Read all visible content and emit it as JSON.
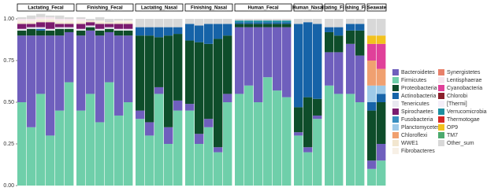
{
  "chart_data": {
    "type": "stacked-bar",
    "ylim": [
      0,
      1
    ],
    "yticks": [
      {
        "value": 0,
        "label": "0.00"
      },
      {
        "value": 0.25,
        "label": "0.25"
      },
      {
        "value": 0.5,
        "label": "0.50"
      },
      {
        "value": 0.75,
        "label": "0.75"
      },
      {
        "value": 1,
        "label": "1.00"
      }
    ],
    "series": [
      {
        "name": "Bacteroidetes",
        "color": "#6f5fbd"
      },
      {
        "name": "Firmicutes",
        "color": "#6fcfaa"
      },
      {
        "name": "Proteobacteria",
        "color": "#0e4d2a"
      },
      {
        "name": "Actinobacteria",
        "color": "#1663a8"
      },
      {
        "name": "Tenericutes",
        "color": "#e8e8f0"
      },
      {
        "name": "Spirochaetes",
        "color": "#7b1b6e"
      },
      {
        "name": "Fusobacteria",
        "color": "#3a8fc0"
      },
      {
        "name": "Planctomycetes",
        "color": "#9ecae8"
      },
      {
        "name": "Chloroflexi",
        "color": "#f0a070"
      },
      {
        "name": "WWE1",
        "color": "#f2e6cf"
      },
      {
        "name": "Fibrobacteres",
        "color": "#f7f0e6"
      },
      {
        "name": "Synergistetes",
        "color": "#e8806a"
      },
      {
        "name": "Lentisphaerae",
        "color": "#f6e6ee"
      },
      {
        "name": "Cyanobacteria",
        "color": "#e0409a"
      },
      {
        "name": "Chlorobi",
        "color": "#8a1f2a"
      },
      {
        "name": "[Thermi]",
        "color": "#f4eef8"
      },
      {
        "name": "Verrucomicrobia",
        "color": "#1e8fa0"
      },
      {
        "name": "Thermotogae",
        "color": "#d42828"
      },
      {
        "name": "OP9",
        "color": "#f2c21e"
      },
      {
        "name": "TM7",
        "color": "#4caa6e"
      },
      {
        "name": "Other_sum",
        "color": "#d8d8d8"
      }
    ],
    "facets": [
      {
        "label": "Lactating_Fecal",
        "values": [
          [
            0.4,
            0.55,
            0.35,
            0.6,
            0.45,
            0.3
          ],
          [
            0.5,
            0.35,
            0.55,
            0.3,
            0.45,
            0.62
          ],
          [
            0.03,
            0.04,
            0.03,
            0.03,
            0.04,
            0.02
          ],
          [
            0,
            0,
            0.01,
            0,
            0,
            0
          ],
          [
            0.01,
            0.01,
            0.01,
            0.01,
            0.01,
            0.01
          ],
          [
            0.03,
            0.02,
            0.03,
            0.04,
            0.02,
            0.02
          ],
          [
            0,
            0,
            0,
            0,
            0,
            0
          ],
          [
            0,
            0,
            0,
            0,
            0,
            0
          ],
          [
            0,
            0,
            0,
            0,
            0,
            0
          ],
          [
            0.01,
            0.01,
            0.01,
            0.01,
            0.01,
            0.01
          ],
          [
            0.01,
            0.01,
            0.01,
            0.01,
            0.01,
            0.01
          ],
          [
            0,
            0,
            0,
            0,
            0,
            0
          ],
          [
            0.01,
            0.01,
            0.01,
            0.01,
            0.01,
            0.01
          ],
          [
            0,
            0,
            0,
            0,
            0,
            0
          ],
          [
            0,
            0,
            0,
            0,
            0,
            0
          ],
          [
            0,
            0,
            0,
            0,
            0,
            0
          ],
          [
            0,
            0,
            0,
            0,
            0,
            0
          ],
          [
            0,
            0,
            0,
            0,
            0,
            0
          ],
          [
            0,
            0,
            0,
            0,
            0,
            0
          ],
          [
            0,
            0,
            0,
            0,
            0,
            0
          ],
          [
            0.01,
            0.02,
            0.02,
            0.01,
            0.02,
            0.01
          ]
        ]
      },
      {
        "label": "Finishing_Fecal",
        "values": [
          [
            0.45,
            0.38,
            0.52,
            0.3,
            0.48,
            0.4
          ],
          [
            0.45,
            0.55,
            0.38,
            0.62,
            0.42,
            0.5
          ],
          [
            0.03,
            0.02,
            0.03,
            0.02,
            0.03,
            0.03
          ],
          [
            0,
            0,
            0,
            0,
            0,
            0
          ],
          [
            0.01,
            0.01,
            0.01,
            0.01,
            0.01,
            0.01
          ],
          [
            0.03,
            0.02,
            0.03,
            0.02,
            0.03,
            0.03
          ],
          [
            0,
            0,
            0,
            0,
            0,
            0
          ],
          [
            0,
            0,
            0,
            0,
            0,
            0
          ],
          [
            0,
            0,
            0,
            0,
            0,
            0
          ],
          [
            0.01,
            0.01,
            0.01,
            0.01,
            0.01,
            0.01
          ],
          [
            0.01,
            0,
            0.01,
            0,
            0.01,
            0.01
          ],
          [
            0,
            0,
            0,
            0,
            0,
            0
          ],
          [
            0.01,
            0,
            0,
            0,
            0,
            0
          ],
          [
            0,
            0,
            0,
            0,
            0,
            0
          ],
          [
            0,
            0,
            0,
            0,
            0,
            0
          ],
          [
            0,
            0,
            0,
            0,
            0,
            0
          ],
          [
            0,
            0,
            0,
            0,
            0,
            0
          ],
          [
            0,
            0,
            0,
            0,
            0,
            0
          ],
          [
            0,
            0,
            0,
            0,
            0,
            0
          ],
          [
            0,
            0,
            0,
            0,
            0,
            0
          ],
          [
            0.01,
            0.01,
            0.02,
            0.02,
            0.01,
            0.01
          ]
        ]
      },
      {
        "label": "Lactating_Nasal",
        "values": [
          [
            0.05,
            0.08,
            0.04,
            0.1,
            0.06
          ],
          [
            0.4,
            0.3,
            0.55,
            0.25,
            0.45
          ],
          [
            0.45,
            0.52,
            0.3,
            0.55,
            0.4
          ],
          [
            0.05,
            0.05,
            0.06,
            0.05,
            0.04
          ],
          [
            0,
            0,
            0,
            0,
            0
          ],
          [
            0,
            0,
            0,
            0,
            0
          ],
          [
            0,
            0,
            0,
            0,
            0
          ],
          [
            0,
            0,
            0,
            0,
            0
          ],
          [
            0,
            0,
            0,
            0,
            0
          ],
          [
            0,
            0,
            0,
            0,
            0
          ],
          [
            0,
            0,
            0,
            0,
            0
          ],
          [
            0,
            0,
            0,
            0,
            0
          ],
          [
            0,
            0,
            0,
            0,
            0
          ],
          [
            0,
            0,
            0,
            0,
            0
          ],
          [
            0,
            0,
            0,
            0,
            0
          ],
          [
            0,
            0,
            0,
            0,
            0
          ],
          [
            0,
            0,
            0,
            0,
            0
          ],
          [
            0,
            0,
            0,
            0,
            0
          ],
          [
            0,
            0,
            0,
            0,
            0
          ],
          [
            0,
            0,
            0,
            0,
            0
          ],
          [
            0.05,
            0.05,
            0.05,
            0.05,
            0.05
          ]
        ]
      },
      {
        "label": "Finishing_Nasal",
        "values": [
          [
            0.04,
            0.06,
            0.05,
            0.03,
            0.05
          ],
          [
            0.45,
            0.25,
            0.35,
            0.2,
            0.5
          ],
          [
            0.38,
            0.55,
            0.45,
            0.65,
            0.35
          ],
          [
            0.1,
            0.1,
            0.12,
            0.09,
            0.07
          ],
          [
            0,
            0,
            0,
            0,
            0
          ],
          [
            0,
            0,
            0,
            0,
            0
          ],
          [
            0,
            0,
            0,
            0,
            0
          ],
          [
            0,
            0,
            0,
            0,
            0
          ],
          [
            0,
            0,
            0,
            0,
            0
          ],
          [
            0,
            0,
            0,
            0,
            0
          ],
          [
            0,
            0,
            0,
            0,
            0
          ],
          [
            0,
            0,
            0,
            0,
            0
          ],
          [
            0,
            0,
            0,
            0,
            0
          ],
          [
            0,
            0,
            0,
            0,
            0
          ],
          [
            0,
            0,
            0,
            0,
            0
          ],
          [
            0,
            0,
            0,
            0,
            0
          ],
          [
            0,
            0,
            0,
            0,
            0
          ],
          [
            0,
            0,
            0,
            0,
            0
          ],
          [
            0,
            0,
            0,
            0,
            0
          ],
          [
            0,
            0,
            0,
            0,
            0
          ],
          [
            0.03,
            0.04,
            0.03,
            0.03,
            0.03
          ]
        ]
      },
      {
        "label": "Human_Fecal",
        "values": [
          [
            0.4,
            0.35,
            0.45,
            0.3,
            0.38,
            0.42
          ],
          [
            0.55,
            0.6,
            0.5,
            0.65,
            0.57,
            0.53
          ],
          [
            0.02,
            0.02,
            0.02,
            0.02,
            0.02,
            0.02
          ],
          [
            0.01,
            0.01,
            0.01,
            0.01,
            0.01,
            0.01
          ],
          [
            0,
            0,
            0,
            0,
            0,
            0
          ],
          [
            0,
            0,
            0,
            0,
            0,
            0
          ],
          [
            0,
            0,
            0,
            0,
            0,
            0
          ],
          [
            0,
            0,
            0,
            0,
            0,
            0
          ],
          [
            0,
            0,
            0,
            0,
            0,
            0
          ],
          [
            0,
            0,
            0,
            0,
            0,
            0
          ],
          [
            0,
            0,
            0,
            0,
            0,
            0
          ],
          [
            0,
            0,
            0,
            0,
            0,
            0
          ],
          [
            0,
            0,
            0,
            0,
            0,
            0
          ],
          [
            0,
            0,
            0,
            0,
            0,
            0
          ],
          [
            0,
            0,
            0,
            0,
            0,
            0
          ],
          [
            0,
            0,
            0,
            0,
            0,
            0
          ],
          [
            0.01,
            0.01,
            0.01,
            0.01,
            0.01,
            0.01
          ],
          [
            0,
            0,
            0,
            0,
            0,
            0
          ],
          [
            0,
            0,
            0,
            0,
            0,
            0
          ],
          [
            0,
            0,
            0,
            0,
            0,
            0
          ],
          [
            0.01,
            0.01,
            0.01,
            0.01,
            0.01,
            0.01
          ]
        ]
      },
      {
        "label": "Human_Nasal",
        "values": [
          [
            0.02,
            0.03,
            0.02
          ],
          [
            0.3,
            0.2,
            0.4
          ],
          [
            0.15,
            0.3,
            0.1
          ],
          [
            0.5,
            0.45,
            0.45
          ],
          [
            0,
            0,
            0
          ],
          [
            0,
            0,
            0
          ],
          [
            0,
            0,
            0
          ],
          [
            0,
            0,
            0
          ],
          [
            0,
            0,
            0
          ],
          [
            0,
            0,
            0
          ],
          [
            0,
            0,
            0
          ],
          [
            0,
            0,
            0
          ],
          [
            0,
            0,
            0
          ],
          [
            0,
            0,
            0
          ],
          [
            0,
            0,
            0
          ],
          [
            0,
            0,
            0
          ],
          [
            0,
            0,
            0
          ],
          [
            0,
            0,
            0
          ],
          [
            0,
            0,
            0
          ],
          [
            0,
            0,
            0
          ],
          [
            0.03,
            0.02,
            0.03
          ]
        ]
      },
      {
        "label": "tating_Fi",
        "values": [
          [
            0.2,
            0.25
          ],
          [
            0.6,
            0.55
          ],
          [
            0.12,
            0.1
          ],
          [
            0.03,
            0.05
          ],
          [
            0,
            0
          ],
          [
            0,
            0
          ],
          [
            0,
            0
          ],
          [
            0,
            0
          ],
          [
            0,
            0
          ],
          [
            0,
            0
          ],
          [
            0,
            0
          ],
          [
            0,
            0
          ],
          [
            0,
            0
          ],
          [
            0,
            0
          ],
          [
            0,
            0
          ],
          [
            0,
            0
          ],
          [
            0,
            0
          ],
          [
            0,
            0
          ],
          [
            0,
            0
          ],
          [
            0,
            0
          ],
          [
            0.05,
            0.05
          ]
        ]
      },
      {
        "label": "ishing_Fi",
        "values": [
          [
            0.3,
            0.28
          ],
          [
            0.55,
            0.5
          ],
          [
            0.08,
            0.15
          ],
          [
            0.04,
            0.04
          ],
          [
            0,
            0
          ],
          [
            0,
            0
          ],
          [
            0,
            0
          ],
          [
            0,
            0
          ],
          [
            0,
            0
          ],
          [
            0,
            0
          ],
          [
            0,
            0
          ],
          [
            0,
            0
          ],
          [
            0,
            0
          ],
          [
            0,
            0
          ],
          [
            0,
            0
          ],
          [
            0,
            0
          ],
          [
            0,
            0
          ],
          [
            0,
            0
          ],
          [
            0,
            0
          ],
          [
            0,
            0
          ],
          [
            0.03,
            0.03
          ]
        ]
      },
      {
        "label": "Seawate",
        "values": [
          [
            0.05,
            0.1
          ],
          [
            0.1,
            0.15
          ],
          [
            0.3,
            0.25
          ],
          [
            0.05,
            0.05
          ],
          [
            0,
            0
          ],
          [
            0,
            0
          ],
          [
            0,
            0
          ],
          [
            0.1,
            0.05
          ],
          [
            0.15,
            0.1
          ],
          [
            0,
            0
          ],
          [
            0,
            0
          ],
          [
            0,
            0
          ],
          [
            0,
            0
          ],
          [
            0.1,
            0.15
          ],
          [
            0,
            0
          ],
          [
            0,
            0
          ],
          [
            0,
            0
          ],
          [
            0,
            0
          ],
          [
            0.05,
            0.05
          ],
          [
            0,
            0
          ],
          [
            0.1,
            0.1
          ]
        ]
      }
    ]
  }
}
